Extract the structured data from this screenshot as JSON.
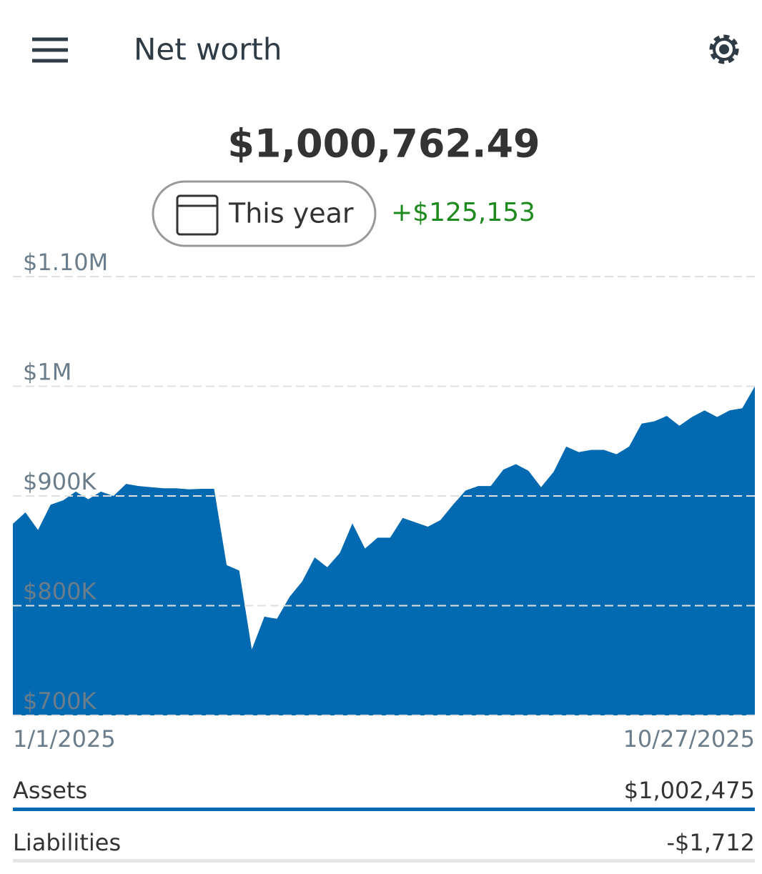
{
  "header": {
    "title": "Net worth"
  },
  "summary": {
    "net_worth": "$1,000,762.49",
    "period": "This year",
    "change": "+$125,153"
  },
  "chart_data": {
    "type": "area",
    "categories": [
      "1/1/2025",
      null,
      null,
      null,
      null,
      null,
      null,
      null,
      null,
      null,
      null,
      null,
      null,
      null,
      null,
      null,
      null,
      null,
      null,
      null,
      null,
      null,
      null,
      null,
      null,
      null,
      null,
      null,
      null,
      null,
      null,
      null,
      null,
      null,
      null,
      null,
      null,
      null,
      null,
      null,
      null,
      null,
      null,
      null,
      null,
      null,
      null,
      null,
      null,
      null,
      null,
      null,
      null,
      null,
      null,
      null,
      null,
      null,
      null,
      "10/27/2025"
    ],
    "values": [
      874600,
      885000,
      869000,
      892000,
      896000,
      904000,
      897000,
      904000,
      900000,
      911000,
      909000,
      908000,
      907000,
      907000,
      906000,
      906500,
      906500,
      837000,
      832000,
      760000,
      790000,
      788000,
      808000,
      822000,
      844000,
      835000,
      848000,
      875000,
      852000,
      862000,
      862000,
      880000,
      876000,
      872000,
      878000,
      892000,
      905000,
      909000,
      909000,
      924000,
      929000,
      923000,
      908000,
      922000,
      945000,
      940000,
      942000,
      942000,
      938000,
      945000,
      966000,
      968000,
      973000,
      964000,
      972000,
      978000,
      972000,
      978000,
      980000,
      1000000
    ],
    "color": "#036ab1",
    "ylim": [
      700000,
      1100000
    ],
    "yticks": [
      {
        "value": 700000,
        "label": "$700K"
      },
      {
        "value": 800000,
        "label": "$800K"
      },
      {
        "value": 900000,
        "label": "$900K"
      },
      {
        "value": 1000000,
        "label": "$1M"
      },
      {
        "value": 1100000,
        "label": "$1.10M"
      }
    ],
    "grid": true
  },
  "breakdown": {
    "rows": [
      [
        "Assets",
        "$1,002,475"
      ],
      [
        "Liabilities",
        "-$1,712"
      ]
    ]
  }
}
